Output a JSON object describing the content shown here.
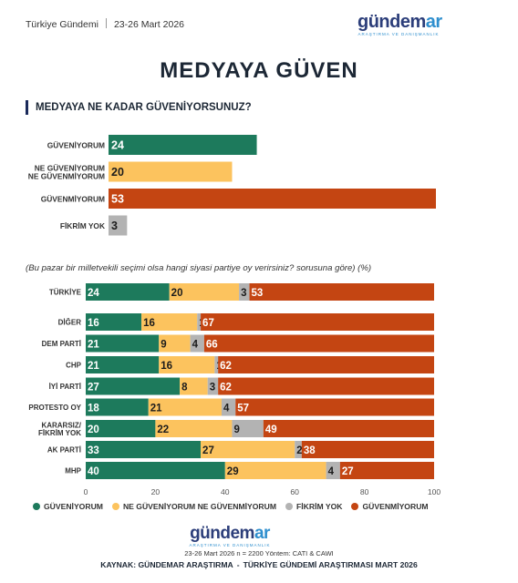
{
  "header": {
    "source_label": "Türkiye Gündemi",
    "date_range": "23-26 Mart 2026",
    "logo": {
      "word_main": "gündem",
      "word_accent": "ar",
      "tagline": "ARAŞTIRMA VE DANIŞMANLIK"
    }
  },
  "title": "MEDYAYA GÜVEN",
  "question": "MEDYAYA NE KADAR GÜVENİYORSUNUZ?",
  "note": "(Bu pazar bir milletvekili seçimi olsa hangi siyasi partiye oy verirsiniz? sorusuna göre) (%)",
  "colors": {
    "guveniyorum": "#1d7a5c",
    "kararsiz": "#fcc35e",
    "fikrim_yok": "#b3b3b3",
    "guvenmiyorum": "#c44512",
    "title": "#1c2735",
    "logo_dark": "#2c3e7a",
    "logo_light": "#2f8fce"
  },
  "chart_data": [
    {
      "type": "bar",
      "orientation": "horizontal",
      "categories": [
        "GÜVENİYORUM",
        "NE GÜVENİYORUM\nNE GÜVENMİYORUM",
        "GÜVENMİYORUM",
        "FİKRİM YOK"
      ],
      "values": [
        24,
        20,
        53,
        3
      ],
      "xlim": [
        0,
        53
      ],
      "bar_colors": [
        "#1d7a5c",
        "#fcc35e",
        "#c44512",
        "#b3b3b3"
      ],
      "grid": false
    },
    {
      "type": "bar",
      "orientation": "horizontal",
      "stacked": true,
      "categories": [
        "TÜRKİYE",
        "DİĞER",
        "DEM PARTİ",
        "CHP",
        "İYİ PARTİ",
        "PROTESTO OY",
        "KARARSIZ/\nFİKRİM YOK",
        "AK PARTİ",
        "MHP"
      ],
      "series": [
        {
          "name": "GÜVENİYORUM",
          "color": "#1d7a5c",
          "values": [
            24,
            16,
            21,
            21,
            27,
            18,
            20,
            33,
            40
          ]
        },
        {
          "name": "NE GÜVENİYORUM NE GÜVENMİYORUM",
          "color": "#fcc35e",
          "values": [
            20,
            16,
            9,
            16,
            8,
            21,
            22,
            27,
            29
          ]
        },
        {
          "name": "FİKRİM YOK",
          "color": "#b3b3b3",
          "values": [
            3,
            1,
            4,
            1,
            3,
            4,
            9,
            2,
            4
          ]
        },
        {
          "name": "GÜVENMİYORUM",
          "color": "#c44512",
          "values": [
            53,
            67,
            66,
            62,
            62,
            57,
            49,
            38,
            27
          ]
        }
      ],
      "xlim": [
        0,
        100
      ],
      "xticks": [
        0,
        20,
        40,
        60,
        80,
        100
      ],
      "legend_position": "bottom",
      "grid": false
    }
  ],
  "footer": {
    "info": "23-26 Mart 2026 n = 2200 Yöntem: CATI & CAWI",
    "source_prefix": "KAYNAK: GÜNDEMAR ARAŞTIRMA",
    "source_suffix": "TÜRKİYE GÜNDEMİ ARAŞTIRMASI MART 2026",
    "dash": "-"
  }
}
